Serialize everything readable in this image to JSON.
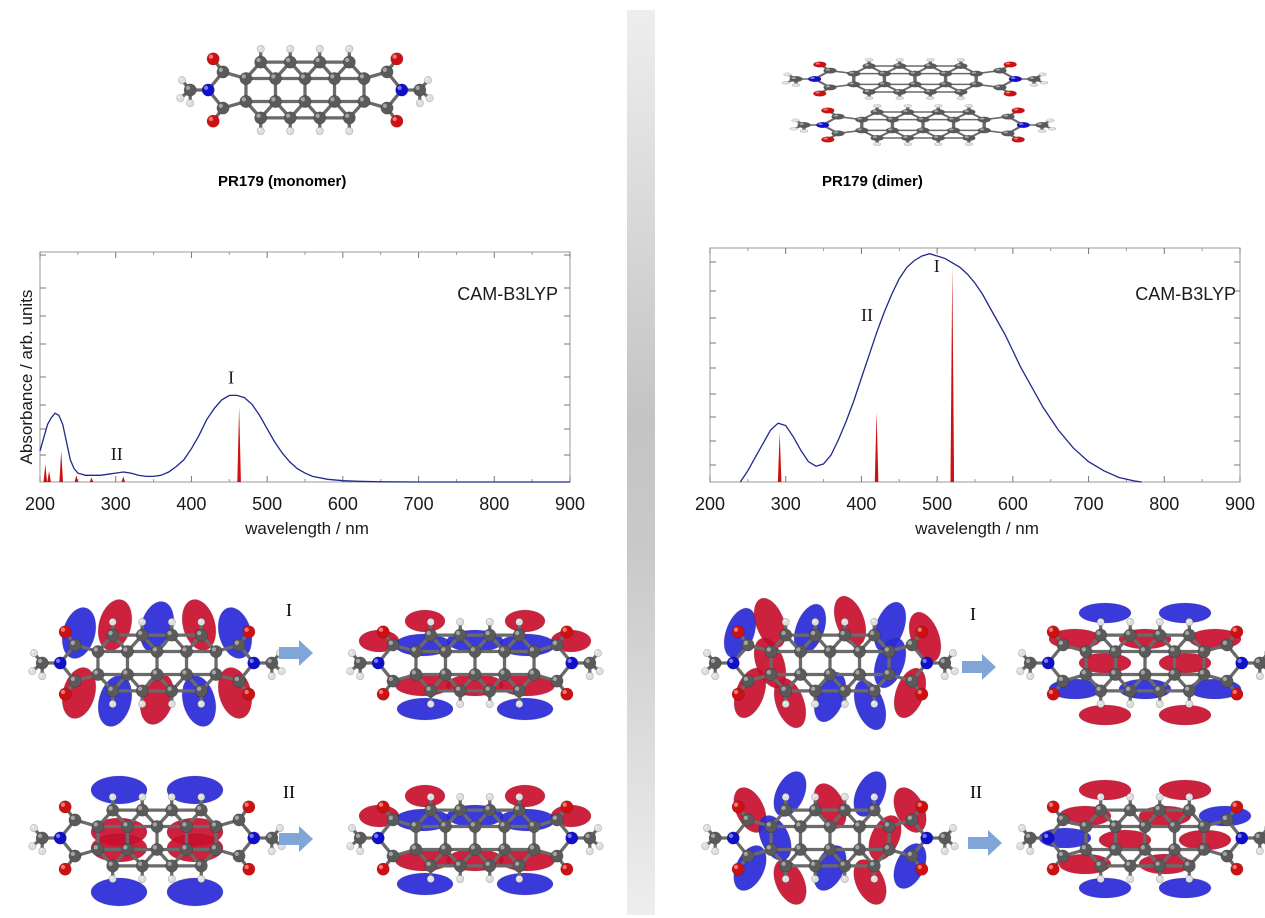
{
  "panels": {
    "monomer": {
      "title": "PR179 (monomer)"
    },
    "dimer": {
      "title": "PR179 (dimer)"
    }
  },
  "orbital_labels": {
    "I": "I",
    "II": "II"
  },
  "colors": {
    "spectrum": "#1f2a8a",
    "stick": "#cc1111",
    "lobe_red": "#c8102e",
    "lobe_blue": "#2a2ad8",
    "carbon": "#555555",
    "oxygen": "#d01010",
    "nitrogen": "#1010cc",
    "hydrogen": "#e8e8e8",
    "arrow": "#7fa6d6"
  },
  "chart_data": [
    {
      "type": "line",
      "ylabel": "Absorbance / arb. units",
      "xlabel": "wavelength / nm",
      "method": "CAM-B3LYP",
      "xlim": [
        200,
        900
      ],
      "x_ticks": [
        "200",
        "300",
        "400",
        "500",
        "600",
        "700",
        "800",
        "900"
      ],
      "ylim": [
        0,
        1.0
      ],
      "series": [
        {
          "x": [
            200,
            205,
            210,
            215,
            220,
            225,
            230,
            235,
            240,
            245,
            250,
            260,
            270,
            280,
            290,
            300,
            310,
            320,
            330,
            340,
            350,
            360,
            370,
            380,
            390,
            400,
            410,
            420,
            430,
            440,
            450,
            460,
            470,
            480,
            490,
            500,
            510,
            520,
            530,
            540,
            550,
            560,
            580,
            600,
            620,
            650,
            700,
            750,
            800,
            900
          ],
          "y": [
            0.14,
            0.2,
            0.26,
            0.29,
            0.31,
            0.3,
            0.26,
            0.18,
            0.1,
            0.06,
            0.04,
            0.03,
            0.03,
            0.03,
            0.035,
            0.04,
            0.045,
            0.04,
            0.03,
            0.025,
            0.025,
            0.03,
            0.045,
            0.07,
            0.1,
            0.15,
            0.21,
            0.28,
            0.33,
            0.37,
            0.39,
            0.39,
            0.38,
            0.35,
            0.3,
            0.24,
            0.18,
            0.13,
            0.09,
            0.06,
            0.04,
            0.025,
            0.012,
            0.006,
            0.003,
            0.001,
            0.0,
            0.0,
            0.0,
            0.0
          ]
        }
      ],
      "sticks": [
        {
          "x": 207,
          "y": 0.08
        },
        {
          "x": 212,
          "y": 0.05
        },
        {
          "x": 228,
          "y": 0.14
        },
        {
          "x": 248,
          "y": 0.03
        },
        {
          "x": 268,
          "y": 0.02
        },
        {
          "x": 310,
          "y": 0.025
        },
        {
          "x": 463,
          "y": 0.34
        }
      ],
      "peak_labels": [
        {
          "label": "I",
          "x": 463
        },
        {
          "label": "II",
          "x": 312
        }
      ],
      "grid": false
    },
    {
      "type": "line",
      "ylabel": "",
      "xlabel": "wavelength / nm",
      "method": "CAM-B3LYP",
      "xlim": [
        200,
        900
      ],
      "x_ticks": [
        "200",
        "300",
        "400",
        "500",
        "600",
        "700",
        "800",
        "900"
      ],
      "ylim": [
        0,
        1.0
      ],
      "series": [
        {
          "x": [
            240,
            250,
            260,
            270,
            280,
            290,
            300,
            310,
            320,
            330,
            340,
            350,
            360,
            370,
            380,
            390,
            400,
            410,
            420,
            430,
            440,
            450,
            460,
            470,
            480,
            490,
            500,
            510,
            520,
            530,
            540,
            550,
            560,
            570,
            580,
            590,
            600,
            610,
            620,
            640,
            660,
            680,
            700,
            720,
            740,
            760,
            770
          ],
          "y": [
            0.0,
            0.05,
            0.11,
            0.17,
            0.23,
            0.26,
            0.25,
            0.2,
            0.14,
            0.09,
            0.07,
            0.08,
            0.12,
            0.19,
            0.27,
            0.36,
            0.46,
            0.56,
            0.66,
            0.75,
            0.83,
            0.9,
            0.95,
            0.98,
            1.0,
            1.01,
            1.0,
            0.99,
            0.97,
            0.95,
            0.92,
            0.88,
            0.83,
            0.77,
            0.71,
            0.65,
            0.58,
            0.51,
            0.45,
            0.33,
            0.23,
            0.15,
            0.09,
            0.05,
            0.02,
            0.005,
            0.0
          ]
        }
      ],
      "sticks": [
        {
          "x": 292,
          "y": 0.22
        },
        {
          "x": 420,
          "y": 0.31
        },
        {
          "x": 520,
          "y": 0.96
        }
      ],
      "peak_labels": [
        {
          "label": "I",
          "x": 510
        },
        {
          "label": "II",
          "x": 418
        }
      ],
      "grid": false
    }
  ]
}
